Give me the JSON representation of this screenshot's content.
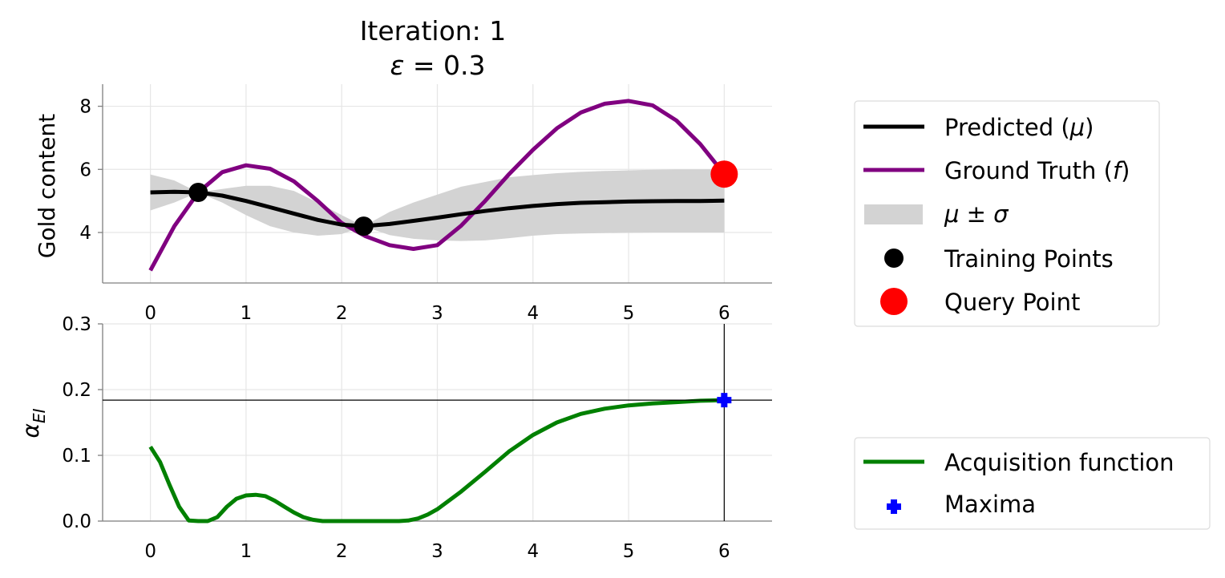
{
  "title": {
    "line1": "Iteration: 1",
    "line2_symbol": "ε",
    "line2_rest": " = 0.3"
  },
  "colors": {
    "predicted": "#000000",
    "ground_truth": "#800080",
    "band": "#d3d3d3",
    "training": "#000000",
    "query": "#ff0000",
    "acquisition": "#008000",
    "maxima": "#0000ff",
    "grid": "#e6e6e6",
    "axis": "#808080"
  },
  "legend_top": {
    "placement": "right",
    "items": [
      {
        "id": "predicted",
        "label": "Predicted (",
        "sym": "μ",
        "tail": ")"
      },
      {
        "id": "ground_truth",
        "label": "Ground Truth (",
        "sym": "f",
        "tail": ")"
      },
      {
        "id": "band",
        "label": "",
        "sym": "μ ± σ",
        "tail": ""
      },
      {
        "id": "training",
        "label": "Training Points",
        "sym": "",
        "tail": ""
      },
      {
        "id": "query",
        "label": "Query Point",
        "sym": "",
        "tail": ""
      }
    ]
  },
  "legend_bottom": {
    "placement": "right",
    "items": [
      {
        "id": "acquisition",
        "label": "Acquisition function"
      },
      {
        "id": "maxima",
        "label": "Maxima"
      }
    ]
  },
  "chart_data": [
    {
      "type": "line",
      "ylabel": "Gold content",
      "xlim": [
        -0.5,
        6.5
      ],
      "ylim": [
        2.4,
        8.7
      ],
      "xticks": [
        0,
        1,
        2,
        3,
        4,
        5,
        6
      ],
      "yticks": [
        4,
        6,
        8
      ],
      "grid": true,
      "series": [
        {
          "name": "Predicted (μ)",
          "x": [
            0,
            0.25,
            0.5,
            0.75,
            1,
            1.25,
            1.5,
            1.75,
            2,
            2.23,
            2.5,
            2.75,
            3,
            3.25,
            3.5,
            3.75,
            4,
            4.25,
            4.5,
            4.75,
            5,
            5.25,
            5.5,
            5.75,
            6
          ],
          "y": [
            5.27,
            5.29,
            5.27,
            5.17,
            5.0,
            4.8,
            4.6,
            4.4,
            4.25,
            4.2,
            4.27,
            4.37,
            4.47,
            4.58,
            4.68,
            4.77,
            4.84,
            4.9,
            4.94,
            4.96,
            4.98,
            4.99,
            5.0,
            5.0,
            5.01
          ]
        },
        {
          "name": "Ground Truth (f)",
          "x": [
            0,
            0.25,
            0.5,
            0.75,
            1,
            1.25,
            1.5,
            1.75,
            2,
            2.25,
            2.5,
            2.75,
            3,
            3.25,
            3.5,
            3.75,
            4,
            4.25,
            4.5,
            4.75,
            5,
            5.25,
            5.5,
            5.75,
            6
          ],
          "y": [
            2.8,
            4.2,
            5.27,
            5.91,
            6.13,
            6.02,
            5.62,
            5.0,
            4.3,
            3.88,
            3.6,
            3.48,
            3.6,
            4.22,
            5.0,
            5.85,
            6.62,
            7.3,
            7.8,
            8.08,
            8.17,
            8.03,
            7.55,
            6.8,
            5.85
          ]
        },
        {
          "name": "μ ± σ",
          "x": [
            0,
            0.25,
            0.5,
            0.75,
            1,
            1.25,
            1.5,
            1.75,
            2,
            2.23,
            2.5,
            2.75,
            3,
            3.25,
            3.5,
            3.75,
            4,
            4.25,
            4.5,
            4.75,
            5,
            5.25,
            5.5,
            5.75,
            6
          ],
          "lower": [
            4.7,
            4.95,
            5.27,
            4.95,
            4.55,
            4.2,
            4.0,
            3.9,
            3.95,
            4.2,
            3.92,
            3.8,
            3.75,
            3.73,
            3.75,
            3.82,
            3.9,
            3.95,
            3.97,
            3.98,
            3.99,
            4.0,
            4.0,
            4.0,
            4.0
          ],
          "upper": [
            5.84,
            5.65,
            5.27,
            5.38,
            5.48,
            5.48,
            5.32,
            4.95,
            4.55,
            4.2,
            4.65,
            4.95,
            5.2,
            5.45,
            5.6,
            5.75,
            5.82,
            5.88,
            5.92,
            5.95,
            5.97,
            5.99,
            6.0,
            6.0,
            6.01
          ]
        },
        {
          "name": "Training Points",
          "x": [
            0.5,
            2.23
          ],
          "y": [
            5.27,
            4.2
          ]
        },
        {
          "name": "Query Point",
          "x": [
            6.0
          ],
          "y": [
            5.85
          ]
        }
      ]
    },
    {
      "type": "line",
      "ylabel": "α",
      "ylabel_sub": "EI",
      "xlim": [
        -0.5,
        6.5
      ],
      "ylim": [
        0.0,
        0.3
      ],
      "xticks": [
        0,
        1,
        2,
        3,
        4,
        5,
        6
      ],
      "yticks": [
        0.0,
        0.1,
        0.2,
        0.3
      ],
      "ytick_labels": [
        "0.0",
        "0.1",
        "0.2",
        "0.3"
      ],
      "grid": true,
      "series": [
        {
          "name": "Acquisition function",
          "x": [
            0,
            0.1,
            0.2,
            0.3,
            0.4,
            0.5,
            0.6,
            0.7,
            0.8,
            0.9,
            1.0,
            1.1,
            1.2,
            1.3,
            1.4,
            1.5,
            1.6,
            1.7,
            1.8,
            2.0,
            2.2,
            2.4,
            2.6,
            2.7,
            2.8,
            2.9,
            3.0,
            3.25,
            3.5,
            3.75,
            4.0,
            4.25,
            4.5,
            4.75,
            5.0,
            5.25,
            5.5,
            5.75,
            6.0
          ],
          "y": [
            0.113,
            0.09,
            0.055,
            0.022,
            0.001,
            0.0,
            0.0,
            0.006,
            0.022,
            0.034,
            0.039,
            0.04,
            0.038,
            0.031,
            0.022,
            0.013,
            0.006,
            0.002,
            0.0,
            0.0,
            0.0,
            0.0,
            0.0,
            0.001,
            0.004,
            0.01,
            0.018,
            0.045,
            0.075,
            0.106,
            0.131,
            0.15,
            0.163,
            0.171,
            0.176,
            0.179,
            0.181,
            0.183,
            0.184
          ]
        },
        {
          "name": "Maxima",
          "x": [
            6.0
          ],
          "y": [
            0.184
          ]
        }
      ],
      "hline": 0.184,
      "vline": 6.0
    }
  ]
}
